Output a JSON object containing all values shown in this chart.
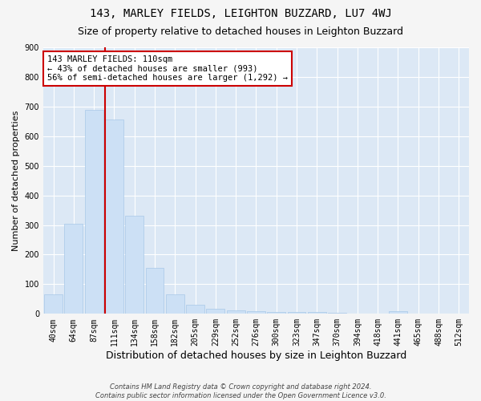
{
  "title": "143, MARLEY FIELDS, LEIGHTON BUZZARD, LU7 4WJ",
  "subtitle": "Size of property relative to detached houses in Leighton Buzzard",
  "xlabel": "Distribution of detached houses by size in Leighton Buzzard",
  "ylabel": "Number of detached properties",
  "bar_color": "#cce0f5",
  "bar_edge_color": "#a8c8e8",
  "categories": [
    "40sqm",
    "64sqm",
    "87sqm",
    "111sqm",
    "134sqm",
    "158sqm",
    "182sqm",
    "205sqm",
    "229sqm",
    "252sqm",
    "276sqm",
    "300sqm",
    "323sqm",
    "347sqm",
    "370sqm",
    "394sqm",
    "418sqm",
    "441sqm",
    "465sqm",
    "488sqm",
    "512sqm"
  ],
  "values": [
    65,
    305,
    690,
    655,
    330,
    155,
    65,
    30,
    18,
    12,
    8,
    7,
    6,
    5,
    3,
    0,
    0,
    8,
    0,
    0,
    0
  ],
  "ylim": [
    0,
    900
  ],
  "yticks": [
    0,
    100,
    200,
    300,
    400,
    500,
    600,
    700,
    800,
    900
  ],
  "subject_bin_index": 3,
  "subject_line_label": "143 MARLEY FIELDS: 110sqm",
  "annotation_line1": "← 43% of detached houses are smaller (993)",
  "annotation_line2": "56% of semi-detached houses are larger (1,292) →",
  "annotation_box_color": "#ffffff",
  "annotation_box_edge": "#cc0000",
  "grid_color": "#ffffff",
  "bg_color": "#dce8f5",
  "outer_bg_color": "#f5f5f5",
  "footer1": "Contains HM Land Registry data © Crown copyright and database right 2024.",
  "footer2": "Contains public sector information licensed under the Open Government Licence v3.0.",
  "title_fontsize": 10,
  "subtitle_fontsize": 9,
  "tick_fontsize": 7,
  "ylabel_fontsize": 8,
  "xlabel_fontsize": 9
}
